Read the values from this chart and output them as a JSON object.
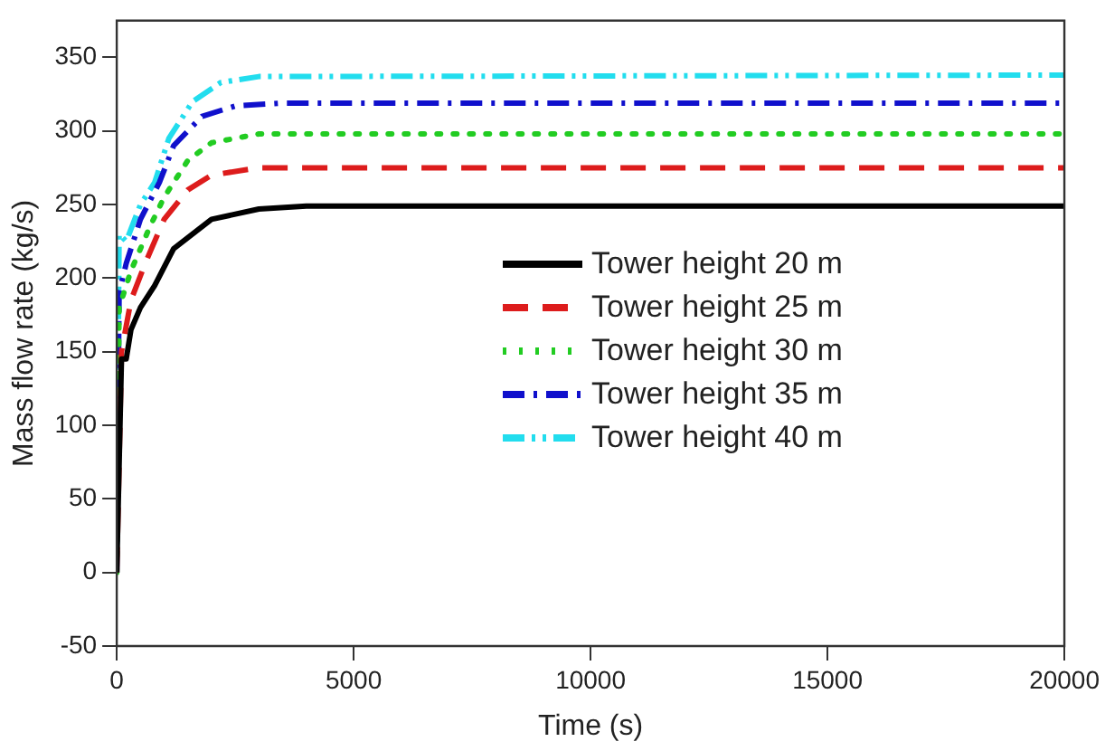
{
  "chart_data": {
    "type": "line",
    "xlabel": "Time (s)",
    "ylabel": "Mass flow rate (kg/s)",
    "xlim": [
      0,
      20000
    ],
    "xticks": [
      0,
      5000,
      10000,
      15000,
      20000
    ],
    "ylim": [
      -50,
      375
    ],
    "yticks": [
      -50,
      0,
      50,
      100,
      150,
      200,
      250,
      300,
      350
    ],
    "grid": false,
    "legend": "center",
    "marker": "none",
    "series": [
      {
        "name": "Tower height 20 m",
        "color": "#000000",
        "line_style": "solid",
        "x": [
          0,
          100,
          200,
          300,
          500,
          800,
          1200,
          2000,
          3000,
          4000,
          20000
        ],
        "values": [
          0,
          145,
          145,
          165,
          180,
          195,
          220,
          240,
          247,
          249,
          249
        ]
      },
      {
        "name": "Tower height 25 m",
        "color": "#dd1c1c",
        "line_style": "dashed",
        "x": [
          0,
          100,
          300,
          600,
          1000,
          1500,
          2000,
          3000,
          20000
        ],
        "values": [
          0,
          150,
          185,
          210,
          240,
          260,
          270,
          275,
          275
        ]
      },
      {
        "name": "Tower height 30 m",
        "color": "#22cc22",
        "line_style": "dotted",
        "x": [
          0,
          50,
          300,
          700,
          1000,
          1500,
          2000,
          3000,
          20000
        ],
        "values": [
          0,
          180,
          205,
          235,
          255,
          280,
          292,
          298,
          298
        ]
      },
      {
        "name": "Tower height 35 m",
        "color": "#1010cc",
        "line_style": "dashdot",
        "x": [
          0,
          50,
          200,
          500,
          900,
          1200,
          1800,
          2500,
          3500,
          20000
        ],
        "values": [
          0,
          190,
          210,
          240,
          265,
          290,
          310,
          317,
          319,
          319
        ]
      },
      {
        "name": "Tower height 40 m",
        "color": "#22ddee",
        "line_style": "dashdotdot",
        "x": [
          0,
          50,
          200,
          500,
          800,
          1100,
          1600,
          2200,
          3000,
          20000
        ],
        "values": [
          0,
          230,
          225,
          250,
          265,
          295,
          320,
          333,
          337,
          338
        ]
      }
    ]
  }
}
